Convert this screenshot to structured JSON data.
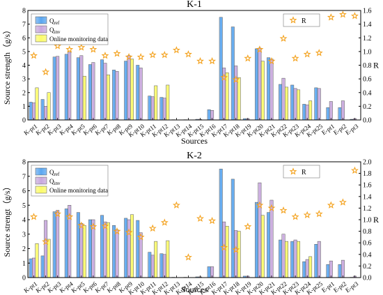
{
  "colors": {
    "qref": "#5aa6f0",
    "qinv": "#c8a8de",
    "online": "#fbfb6a",
    "r": "#f4a21e",
    "axis": "#000000"
  },
  "chart_data": [
    {
      "type": "bar",
      "title": "K-1",
      "xlabel": "Sources",
      "ylabel": "Source strength（g/s）",
      "y2label": "R",
      "ylim": [
        0,
        8
      ],
      "yticks": [
        "0",
        "1",
        "2",
        "3",
        "4",
        "5",
        "6",
        "7",
        "8"
      ],
      "y2lim": [
        0,
        1.6
      ],
      "y2ticks": [
        "0.0",
        "0.2",
        "0.4",
        "0.6",
        "0.8",
        "1.0",
        "1.2",
        "1.4",
        "1.6"
      ],
      "legend_left": {
        "position": "top-left",
        "entries": [
          "Q_ref",
          "Q_inv",
          "Online monitoring data"
        ]
      },
      "legend_right": {
        "position": "top-right",
        "entries": [
          "R"
        ]
      },
      "categories": [
        "K-pt1",
        "K-pt2",
        "K-pt3",
        "K-pt4",
        "K-pt5",
        "K-pt6",
        "K-pt7",
        "K-pt8",
        "K-pt9",
        "K-pt10",
        "K-pt11",
        "K-pt12",
        "K-pt13",
        "K-pt14",
        "K-pt15",
        "K-pt16",
        "K-pt17",
        "K-pt18",
        "K-pt19",
        "K-pt20",
        "K-pt21",
        "K-pt22",
        "K-pt23",
        "K-pt24",
        "K-pt25",
        "E-pt1",
        "E-pt2",
        "E-pt3"
      ],
      "series": [
        {
          "name": "Q_ref",
          "values": [
            1.3,
            1.5,
            4.6,
            4.8,
            4.55,
            4.05,
            4.4,
            3.65,
            4.3,
            4.0,
            1.75,
            1.65,
            0.02,
            0.02,
            0.05,
            0.75,
            7.5,
            6.8,
            0.1,
            5.2,
            4.55,
            2.6,
            2.55,
            1.15,
            2.35,
            0.9,
            0.9,
            0.05
          ]
        },
        {
          "name": "Q_inv",
          "values": [
            1.25,
            1.0,
            4.65,
            4.95,
            4.7,
            4.2,
            4.15,
            3.55,
            4.7,
            3.8,
            1.7,
            1.6,
            0.01,
            0.01,
            0.05,
            0.7,
            3.8,
            3.95,
            0.1,
            5.25,
            4.45,
            3.05,
            2.3,
            1.1,
            2.3,
            1.35,
            1.4,
            0.1
          ]
        },
        {
          "name": "Online monitoring data",
          "values": [
            2.35,
            2.0,
            null,
            null,
            3.2,
            null,
            3.3,
            null,
            4.45,
            null,
            2.5,
            2.55,
            null,
            null,
            null,
            null,
            3.45,
            3.1,
            null,
            4.3,
            null,
            2.4,
            2.2,
            1.4,
            null,
            null,
            null,
            null
          ]
        },
        {
          "name": "R",
          "axis": "right",
          "values": [
            0.94,
            0.7,
            1.08,
            1.03,
            1.06,
            1.03,
            0.94,
            0.97,
            0.92,
            0.92,
            0.95,
            0.95,
            1.02,
            0.96,
            0.86,
            0.86,
            0.62,
            0.59,
            0.9,
            1.03,
            0.86,
            1.19,
            0.9,
            0.96,
            0.98,
            1.5,
            1.54,
            1.52
          ]
        }
      ]
    },
    {
      "type": "bar",
      "title": "K-2",
      "xlabel": "Sources",
      "ylabel": "Source strengt（g/s）",
      "y2label": "R",
      "ylim": [
        0,
        8
      ],
      "yticks": [
        "0",
        "1",
        "2",
        "3",
        "4",
        "5",
        "6",
        "7",
        "8"
      ],
      "y2lim": [
        0,
        2.0
      ],
      "y2ticks": [
        "0.0",
        "0.2",
        "0.4",
        "0.6",
        "0.8",
        "1.0",
        "1.2",
        "1.4",
        "1.6",
        "1.8",
        "2.0"
      ],
      "legend_left": {
        "position": "top-left",
        "entries": [
          "Q_ref",
          "Q_inv",
          "Online monitoring data"
        ]
      },
      "legend_right": {
        "position": "top-right",
        "entries": [
          "R"
        ]
      },
      "categories": [
        "K-pt1",
        "K-pt2",
        "K-pt3",
        "K-pt4",
        "K-pt5",
        "K-pt6",
        "K-pt7",
        "K-pt8",
        "K-pt9",
        "K-pt10",
        "K-pt11",
        "K-pt12",
        "K-pt13",
        "K-pt14",
        "K-pt15",
        "K-pt16",
        "K-pt17",
        "K-pt18",
        "K-pt19",
        "K-pt20",
        "K-pt21",
        "K-pt22",
        "K-pt23",
        "K-pt24",
        "K-pt25",
        "E-pt1",
        "E-pt2",
        "E-pt3"
      ],
      "series": [
        {
          "name": "Q_ref",
          "values": [
            1.3,
            1.5,
            4.55,
            4.75,
            4.5,
            4.0,
            4.3,
            3.6,
            4.1,
            3.95,
            1.75,
            1.65,
            0.02,
            0.02,
            0.05,
            0.75,
            7.5,
            6.8,
            0.1,
            5.2,
            4.5,
            2.6,
            2.5,
            1.1,
            2.3,
            0.9,
            0.9,
            0.02
          ]
        },
        {
          "name": "Q_inv",
          "values": [
            1.35,
            3.95,
            4.65,
            5.0,
            3.75,
            4.0,
            3.85,
            3.3,
            4.0,
            3.1,
            1.55,
            1.6,
            0.01,
            0.01,
            0.05,
            0.75,
            3.85,
            3.25,
            0.1,
            6.55,
            5.35,
            3.0,
            2.6,
            1.25,
            2.5,
            1.15,
            1.2,
            0.1
          ]
        },
        {
          "name": "Online monitoring data",
          "values": [
            2.35,
            2.65,
            null,
            null,
            3.6,
            null,
            3.8,
            null,
            4.35,
            null,
            2.5,
            2.55,
            null,
            null,
            null,
            null,
            3.55,
            3.2,
            null,
            4.3,
            null,
            2.5,
            2.5,
            1.45,
            null,
            null,
            null,
            null
          ]
        },
        {
          "name": "R",
          "axis": "right",
          "values": [
            1.05,
            0.62,
            1.1,
            1.05,
            0.9,
            0.88,
            0.89,
            0.8,
            0.78,
            0.7,
            0.85,
            0.95,
            1.25,
            0.35,
            1.02,
            0.98,
            0.52,
            0.48,
            0.88,
            1.25,
            1.2,
            1.16,
            1.05,
            1.08,
            1.1,
            1.25,
            1.3,
            1.85
          ]
        }
      ]
    }
  ]
}
